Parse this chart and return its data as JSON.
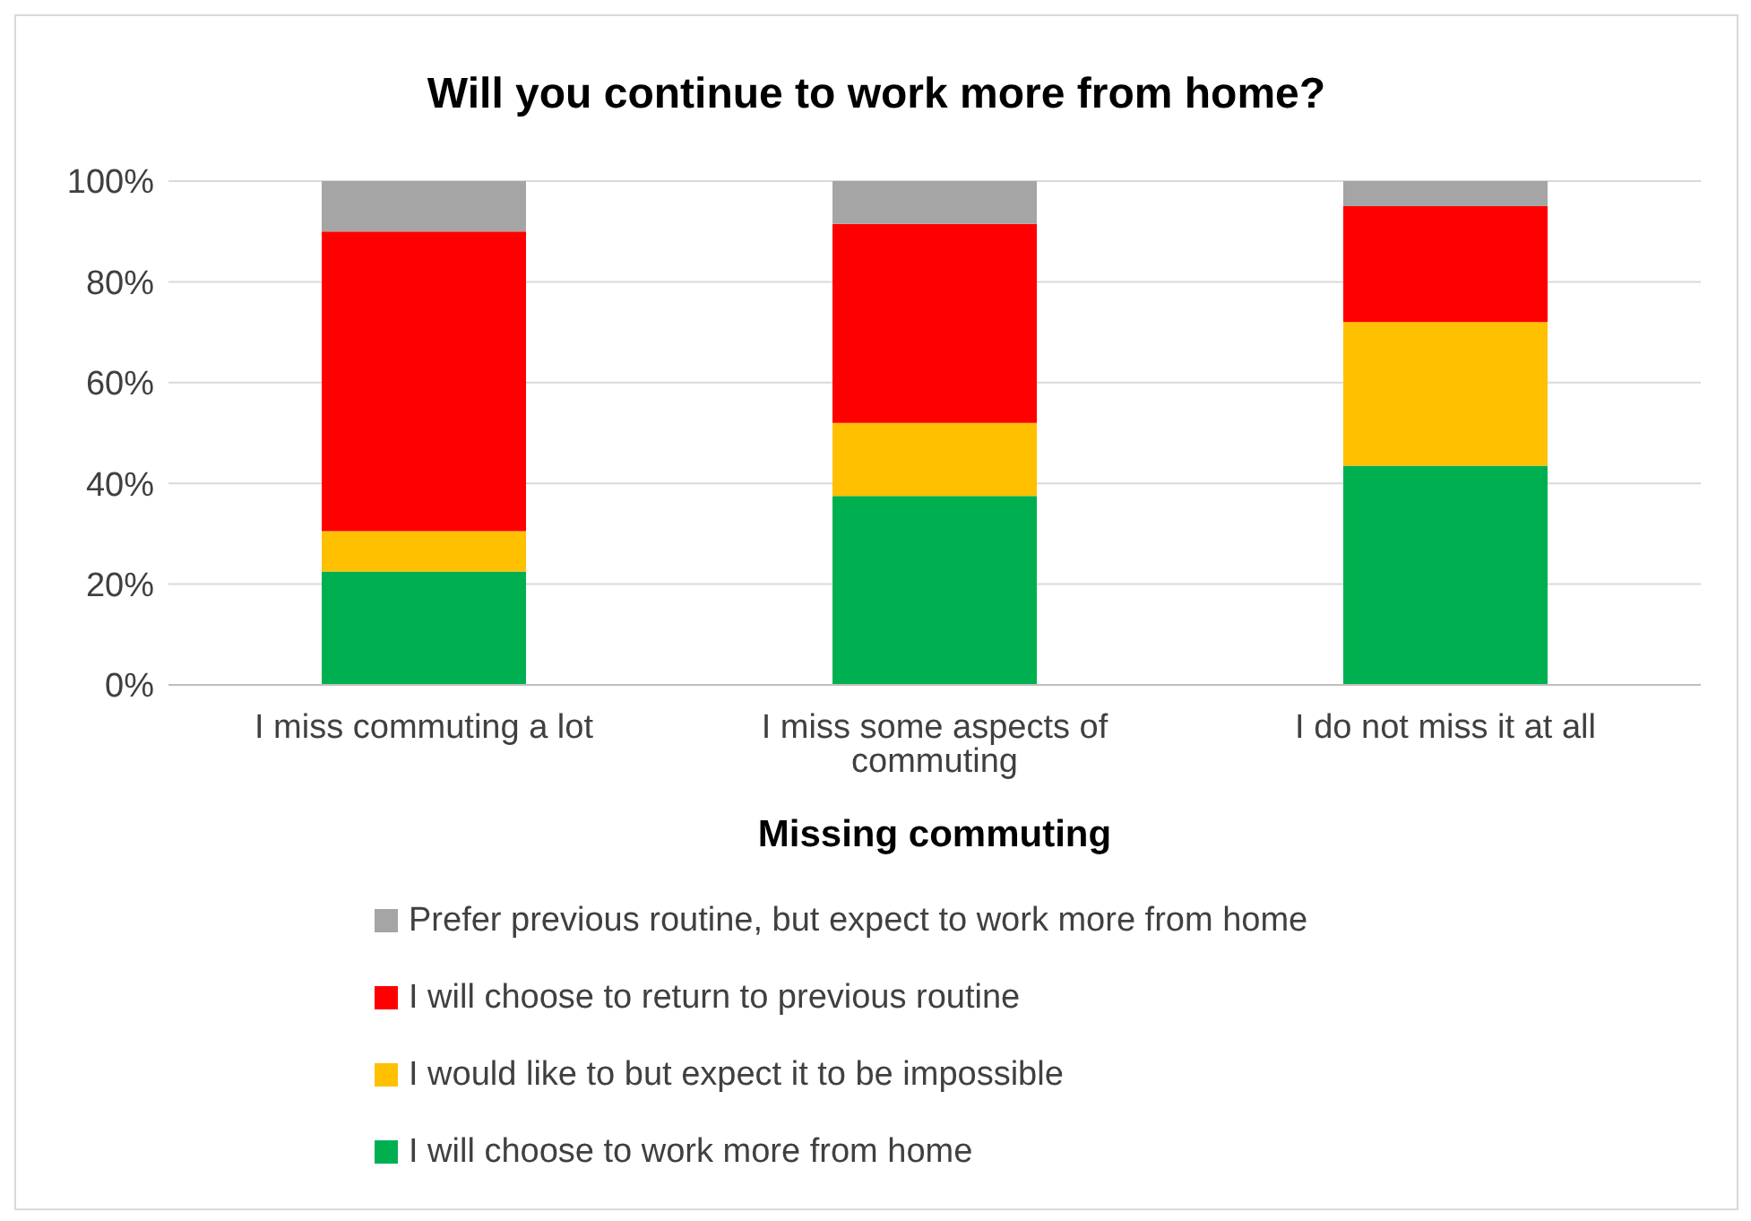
{
  "chart_data": {
    "type": "bar",
    "stacked": true,
    "title": "Will you continue to work more from home?",
    "xlabel": "Missing commuting",
    "categories": [
      "I miss commuting a lot",
      "I miss some aspects of commuting",
      "I do not miss it at all"
    ],
    "series": [
      {
        "name": "I will choose to work more from home",
        "color": "#00b050",
        "values": [
          22.5,
          37.5,
          43.5
        ]
      },
      {
        "name": "I would like to but expect it to be impossible",
        "color": "#ffc000",
        "values": [
          8,
          14.5,
          28.5
        ]
      },
      {
        "name": "I will choose to return to previous routine",
        "color": "#ff0000",
        "values": [
          59.5,
          39.5,
          23
        ]
      },
      {
        "name": "Prefer previous routine, but expect to work more from home",
        "color": "#a5a5a5",
        "values": [
          10,
          8.5,
          5
        ]
      }
    ],
    "ylim": [
      0,
      100
    ],
    "yticks": [
      {
        "value": 0,
        "label": "0%"
      },
      {
        "value": 20,
        "label": "20%"
      },
      {
        "value": 40,
        "label": "40%"
      },
      {
        "value": 60,
        "label": "60%"
      },
      {
        "value": 80,
        "label": "80%"
      },
      {
        "value": 100,
        "label": "100%"
      }
    ],
    "grid": "y",
    "legend": "bottom"
  }
}
